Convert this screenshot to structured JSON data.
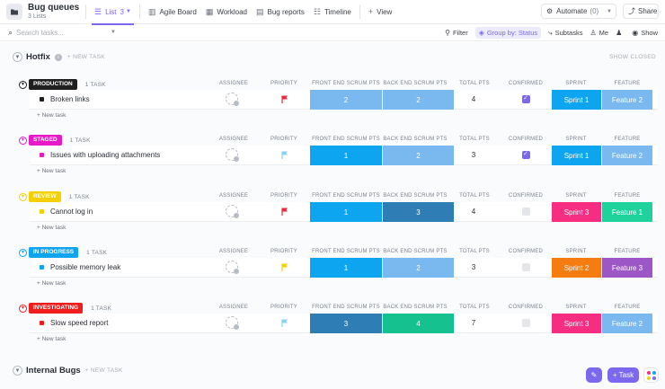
{
  "header": {
    "title": "Bug queues",
    "subtitle": "3 Lists",
    "tabs": [
      {
        "label": "List",
        "count": "3",
        "icon": "list-icon",
        "active": true
      },
      {
        "label": "Agile Board",
        "icon": "board-icon"
      },
      {
        "label": "Workload",
        "icon": "workload-icon"
      },
      {
        "label": "Bug reports",
        "icon": "report-icon"
      },
      {
        "label": "Timeline",
        "icon": "timeline-icon"
      },
      {
        "label": "View",
        "icon": "plus-icon"
      }
    ],
    "automate_label": "Automate",
    "automate_count": "(0)",
    "share_label": "Share"
  },
  "toolbar": {
    "search_placeholder": "Search tasks...",
    "filter_label": "Filter",
    "groupby_label": "Group by: Status",
    "subtasks_label": "Subtasks",
    "me_label": "Me",
    "show_label": "Show"
  },
  "columns": {
    "assignee": "ASSIGNEE",
    "priority": "PRIORITY",
    "front_end": "FRONT END SCRUM PTS",
    "back_end": "BACK END SCRUM PTS",
    "total": "TOTAL PTS",
    "confirmed": "CONFIRMED",
    "sprint": "SPRINT",
    "feature": "FEATURE"
  },
  "sections": [
    {
      "title": "Hotfix",
      "new_task": "+ NEW TASK",
      "show_closed": "SHOW CLOSED"
    },
    {
      "title": "Internal Bugs",
      "new_task": "+ NEW TASK"
    }
  ],
  "groups": [
    {
      "status": "PRODUCTION",
      "status_color": "#1f1f1f",
      "count": "1 TASK",
      "task": {
        "name": "Broken links",
        "priority": "urgent",
        "priority_color": "#f0263c",
        "front_end": "2",
        "front_end_color": "#7ab8f0",
        "back_end": "2",
        "back_end_color": "#7ab8f0",
        "total": "4",
        "confirmed": true,
        "sprint": "Sprint 1",
        "sprint_color": "#0ea5f0",
        "feature": "Feature 2",
        "feature_color": "#7ab8f0"
      },
      "new_task": "+ New task"
    },
    {
      "status": "STAGED",
      "status_color": "#e81ac7",
      "count": "1 TASK",
      "task": {
        "name": "Issues with uploading attachments",
        "priority": "low",
        "priority_color": "#8ad3f0",
        "front_end": "1",
        "front_end_color": "#0ea5f0",
        "back_end": "2",
        "back_end_color": "#7ab8f0",
        "total": "3",
        "confirmed": true,
        "sprint": "Sprint 1",
        "sprint_color": "#0ea5f0",
        "feature": "Feature 2",
        "feature_color": "#7ab8f0"
      },
      "new_task": "+ New task"
    },
    {
      "status": "REVIEW",
      "status_color": "#f5d000",
      "count": "1 TASK",
      "task": {
        "name": "Cannot log in",
        "priority": "urgent",
        "priority_color": "#f0263c",
        "front_end": "1",
        "front_end_color": "#0ea5f0",
        "back_end": "3",
        "back_end_color": "#2e7db5",
        "total": "4",
        "confirmed": false,
        "sprint": "Sprint 3",
        "sprint_color": "#f72d82",
        "feature": "Feature 1",
        "feature_color": "#1fd19a"
      },
      "new_task": "+ New task"
    },
    {
      "status": "IN PROGRESS",
      "status_color": "#0ea5f0",
      "count": "1 TASK",
      "task": {
        "name": "Possible memory leak",
        "priority": "normal",
        "priority_color": "#f5d000",
        "front_end": "1",
        "front_end_color": "#0ea5f0",
        "back_end": "2",
        "back_end_color": "#7ab8f0",
        "total": "3",
        "confirmed": false,
        "sprint": "Sprint 2",
        "sprint_color": "#f57c11",
        "feature": "Feature 3",
        "feature_color": "#9c56c5"
      },
      "new_task": "+ New task"
    },
    {
      "status": "INVESTIGATING",
      "status_color": "#ef1d1d",
      "count": "1 TASK",
      "task": {
        "name": "Slow speed report",
        "priority": "low",
        "priority_color": "#8ad3f0",
        "front_end": "3",
        "front_end_color": "#2e7db5",
        "back_end": "4",
        "back_end_color": "#15c18f",
        "total": "7",
        "confirmed": false,
        "sprint": "Sprint 3",
        "sprint_color": "#f72d82",
        "feature": "Feature 2",
        "feature_color": "#7ab8f0"
      },
      "new_task": "+ New task"
    }
  ],
  "fab": {
    "task_label": "+ Task"
  }
}
